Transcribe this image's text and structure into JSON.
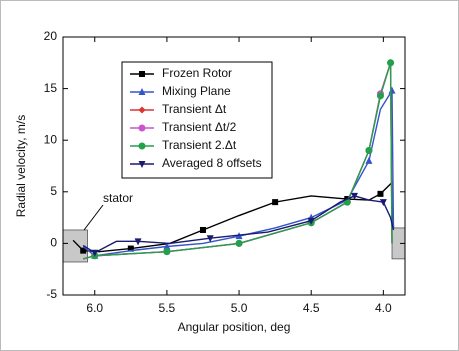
{
  "chart_data": {
    "type": "line",
    "xlabel": "Angular position, deg",
    "ylabel": "Radial velocity, m/s",
    "annotation": "stator",
    "xlim": [
      6.22,
      3.85
    ],
    "ylim": [
      -5,
      20
    ],
    "xticks": [
      {
        "value": 6,
        "label": "6.0"
      },
      5.5,
      {
        "value": 5,
        "label": "5.0"
      },
      4.5,
      {
        "value": 4,
        "label": "4.0"
      }
    ],
    "yticks": [
      -5,
      0,
      5,
      10,
      15,
      20
    ],
    "shaded_regions": [
      {
        "x": [
          6.22,
          6.05
        ],
        "y": [
          -1.8,
          1.3
        ]
      },
      {
        "x": [
          3.94,
          3.85
        ],
        "y": [
          -1.5,
          1.5
        ]
      }
    ],
    "series": [
      {
        "name": "Frozen Rotor",
        "color": "#000000",
        "marker": "square",
        "x": [
          6.15,
          6.08,
          5.97,
          5.75,
          5.48,
          5.25,
          5.0,
          4.75,
          4.5,
          4.25,
          4.1,
          4.02,
          3.94,
          3.93
        ],
        "values": [
          0.3,
          -0.7,
          -0.8,
          -0.5,
          0,
          1.3,
          2.7,
          4.0,
          4.6,
          4.3,
          4.2,
          4.8,
          5.9,
          1.5
        ]
      },
      {
        "name": "Mixing Plane",
        "color": "#3355cc",
        "marker": "triangle",
        "x": [
          6.08,
          6.0,
          5.75,
          5.5,
          5.25,
          5.0,
          4.75,
          4.5,
          4.25,
          4.1,
          4.02,
          3.94,
          3.93
        ],
        "values": [
          -0.3,
          -1.2,
          -0.7,
          -0.3,
          0,
          0.7,
          1.5,
          2.5,
          4.2,
          8,
          13,
          14.8,
          1.5
        ]
      },
      {
        "name": "Transient Δt",
        "color": "#dd3333",
        "marker": "diamond",
        "x": [
          6.08,
          6.0,
          5.5,
          5.0,
          4.5,
          4.25,
          4.1,
          4.02,
          3.95,
          3.94
        ],
        "values": [
          -1.5,
          -1.2,
          -0.8,
          0,
          2.0,
          4.0,
          9,
          14.5,
          17.5,
          0
        ]
      },
      {
        "name": "Transient Δt/2",
        "color": "#cc55cc",
        "marker": "circle",
        "x": [
          6.08,
          6.0,
          5.5,
          5.0,
          4.5,
          4.25,
          4.1,
          4.02,
          3.95,
          3.94
        ],
        "values": [
          -1.5,
          -1.2,
          -0.8,
          0,
          2.0,
          4.0,
          9,
          14.5,
          17.5,
          0
        ]
      },
      {
        "name": "Transient 2.Δt",
        "color": "#22a04a",
        "marker": "circle",
        "x": [
          6.08,
          6.0,
          5.5,
          5.0,
          4.5,
          4.25,
          4.1,
          4.02,
          3.95,
          3.94
        ],
        "values": [
          -1.5,
          -1.2,
          -0.8,
          0,
          2.0,
          4.0,
          9,
          14.3,
          17.5,
          0
        ]
      },
      {
        "name": "Averaged 8 offsets",
        "color": "#1a1a70",
        "marker": "invtriangle",
        "x": [
          6.08,
          6.0,
          5.85,
          5.7,
          5.48,
          5.2,
          4.8,
          4.5,
          4.3,
          4.2,
          4.1,
          4.0,
          3.95,
          3.93
        ],
        "values": [
          -0.2,
          -0.9,
          0.2,
          0.2,
          0,
          0.5,
          1.1,
          2.2,
          4.0,
          4.6,
          4.2,
          4.0,
          2.5,
          1.3
        ]
      }
    ]
  }
}
